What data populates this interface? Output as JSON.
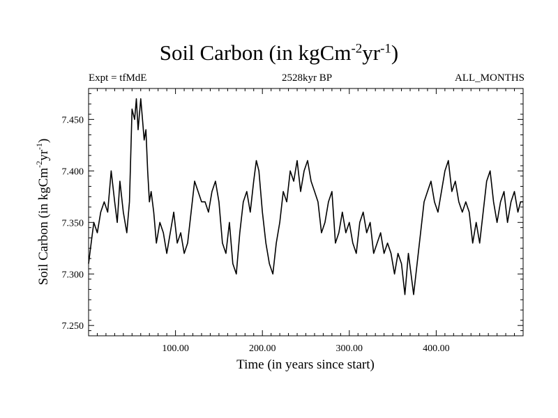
{
  "header": {
    "title_main": "Soil Carbon (in kgCm",
    "title_sup1": "-2",
    "title_mid": "yr",
    "title_sup2": "-1",
    "title_end": ")",
    "expt": "Expt = tfMdE",
    "period": "2528kyr BP",
    "months": "ALL_MONTHS"
  },
  "chart_data": {
    "type": "line",
    "title": "Soil Carbon (in kgCm-2yr-1)",
    "xlabel": "Time (in years since start)",
    "ylabel": "Soil Carbon (in kgCm-2yr-1)",
    "ylabel_main": "Soil Carbon (in kgCm",
    "ylabel_sup1": "-2",
    "ylabel_mid": "yr",
    "ylabel_sup2": "-1",
    "ylabel_end": ")",
    "xlim": [
      0,
      500
    ],
    "ylim": [
      7.24,
      7.48
    ],
    "xticks": [
      100,
      200,
      300,
      400
    ],
    "xtick_labels": [
      "100.00",
      "200.00",
      "300.00",
      "400.00"
    ],
    "yticks": [
      7.25,
      7.3,
      7.35,
      7.4,
      7.45
    ],
    "ytick_labels": [
      "7.250",
      "7.300",
      "7.350",
      "7.400",
      "7.450"
    ],
    "grid": false,
    "series": [
      {
        "color": "#000000",
        "x": [
          0,
          3,
          6,
          10,
          14,
          18,
          22,
          26,
          30,
          33,
          36,
          40,
          44,
          47,
          50,
          53,
          55,
          57,
          60,
          62,
          64,
          66,
          68,
          70,
          72,
          75,
          78,
          82,
          86,
          90,
          94,
          98,
          102,
          106,
          110,
          114,
          118,
          122,
          126,
          130,
          134,
          138,
          142,
          146,
          150,
          154,
          158,
          162,
          166,
          170,
          174,
          178,
          182,
          186,
          190,
          193,
          196,
          200,
          204,
          208,
          212,
          216,
          220,
          224,
          228,
          232,
          236,
          240,
          244,
          248,
          252,
          256,
          260,
          264,
          268,
          272,
          276,
          280,
          284,
          288,
          292,
          296,
          300,
          304,
          308,
          312,
          316,
          320,
          324,
          328,
          332,
          336,
          340,
          344,
          348,
          352,
          356,
          360,
          364,
          368,
          371,
          374,
          378,
          382,
          386,
          390,
          394,
          398,
          402,
          406,
          410,
          414,
          418,
          422,
          426,
          430,
          434,
          438,
          442,
          446,
          450,
          454,
          458,
          462,
          466,
          470,
          474,
          478,
          482,
          486,
          490,
          494,
          497,
          500
        ],
        "y": [
          7.31,
          7.33,
          7.35,
          7.34,
          7.36,
          7.37,
          7.36,
          7.4,
          7.37,
          7.35,
          7.39,
          7.36,
          7.34,
          7.37,
          7.46,
          7.45,
          7.47,
          7.44,
          7.47,
          7.45,
          7.43,
          7.44,
          7.4,
          7.37,
          7.38,
          7.36,
          7.33,
          7.35,
          7.34,
          7.32,
          7.34,
          7.36,
          7.33,
          7.34,
          7.32,
          7.33,
          7.36,
          7.39,
          7.38,
          7.37,
          7.37,
          7.36,
          7.38,
          7.39,
          7.37,
          7.33,
          7.32,
          7.35,
          7.31,
          7.3,
          7.34,
          7.37,
          7.38,
          7.36,
          7.39,
          7.41,
          7.4,
          7.36,
          7.33,
          7.31,
          7.3,
          7.33,
          7.35,
          7.38,
          7.37,
          7.4,
          7.39,
          7.41,
          7.38,
          7.4,
          7.41,
          7.39,
          7.38,
          7.37,
          7.34,
          7.35,
          7.37,
          7.38,
          7.33,
          7.34,
          7.36,
          7.34,
          7.35,
          7.33,
          7.32,
          7.35,
          7.36,
          7.34,
          7.35,
          7.32,
          7.33,
          7.34,
          7.32,
          7.33,
          7.32,
          7.3,
          7.32,
          7.31,
          7.28,
          7.32,
          7.3,
          7.28,
          7.31,
          7.34,
          7.37,
          7.38,
          7.39,
          7.37,
          7.36,
          7.38,
          7.4,
          7.41,
          7.38,
          7.39,
          7.37,
          7.36,
          7.37,
          7.36,
          7.33,
          7.35,
          7.33,
          7.36,
          7.39,
          7.4,
          7.37,
          7.35,
          7.37,
          7.38,
          7.35,
          7.37,
          7.38,
          7.36,
          7.37,
          7.37
        ]
      }
    ]
  }
}
